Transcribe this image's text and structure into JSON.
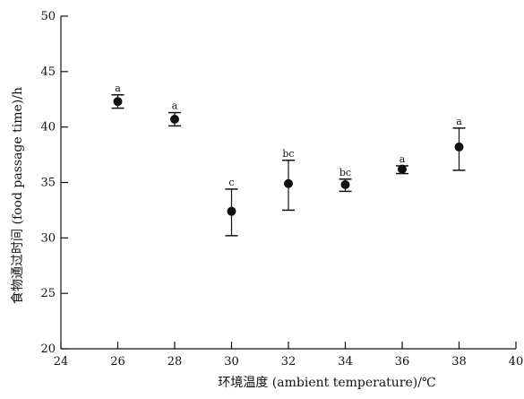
{
  "chart_data": {
    "type": "scatter",
    "title": "",
    "xlabel": "环境温度 (ambient temperature)/℃",
    "ylabel": "食物通过时间 (food passage time)/h",
    "xlim": [
      24,
      40
    ],
    "ylim": [
      20,
      50
    ],
    "x_ticks": [
      24,
      26,
      28,
      30,
      32,
      34,
      36,
      38,
      40
    ],
    "y_ticks": [
      20,
      25,
      30,
      35,
      40,
      45,
      50
    ],
    "grid": false,
    "legend": "none",
    "series": [
      {
        "points": [
          {
            "x": 26,
            "y": 42.3,
            "err_low": 41.7,
            "err_high": 42.9,
            "label": "a"
          },
          {
            "x": 28,
            "y": 40.7,
            "err_low": 40.1,
            "err_high": 41.3,
            "label": "a"
          },
          {
            "x": 30,
            "y": 32.4,
            "err_low": 30.2,
            "err_high": 34.4,
            "label": "c"
          },
          {
            "x": 32,
            "y": 34.9,
            "err_low": 32.5,
            "err_high": 37.0,
            "label": "bc"
          },
          {
            "x": 34,
            "y": 34.8,
            "err_low": 34.2,
            "err_high": 35.3,
            "label": "bc"
          },
          {
            "x": 36,
            "y": 36.2,
            "err_low": 35.8,
            "err_high": 36.5,
            "label": "a"
          },
          {
            "x": 38,
            "y": 38.2,
            "err_low": 36.1,
            "err_high": 39.9,
            "label": "a"
          }
        ]
      }
    ],
    "colors": {
      "axis": "#111111",
      "marker": "#111111"
    }
  }
}
